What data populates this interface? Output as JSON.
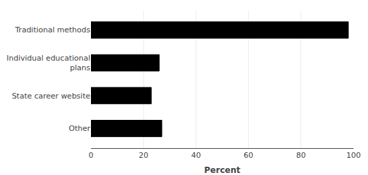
{
  "chart_data": {
    "type": "bar",
    "orientation": "horizontal",
    "categories": [
      "Other",
      "State career website",
      "Individual educational\nplans",
      "Traditional methods"
    ],
    "values": [
      27,
      23,
      26,
      98
    ],
    "color": "#000000",
    "xlabel": "Percent",
    "xlim": [
      0,
      100
    ],
    "xticks": [
      0,
      20,
      40,
      60,
      80,
      100
    ],
    "grid": true
  }
}
